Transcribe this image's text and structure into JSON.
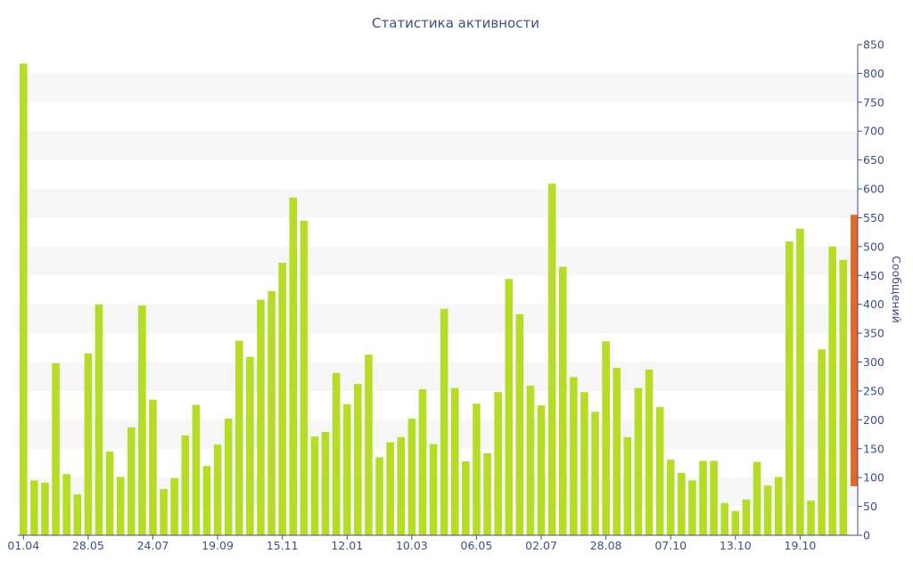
{
  "chart_data": {
    "type": "bar",
    "title": "Статистика активности",
    "ylabel": "Сообщений",
    "xlabel": "",
    "ylim": [
      0,
      850
    ],
    "y_ticks": [
      0,
      50,
      100,
      150,
      200,
      250,
      300,
      350,
      400,
      450,
      500,
      550,
      600,
      650,
      700,
      750,
      800,
      850
    ],
    "y_axis_side": "right",
    "grid": "alternating horizontal bands",
    "x_tick_labels": [
      {
        "index": 0,
        "label": "01.04"
      },
      {
        "index": 6,
        "label": "28.05"
      },
      {
        "index": 12,
        "label": "24.07"
      },
      {
        "index": 18,
        "label": "19.09"
      },
      {
        "index": 24,
        "label": "15.11"
      },
      {
        "index": 30,
        "label": "12.01"
      },
      {
        "index": 36,
        "label": "10.03"
      },
      {
        "index": 42,
        "label": "06.05"
      },
      {
        "index": 48,
        "label": "02.07"
      },
      {
        "index": 54,
        "label": "28.08"
      },
      {
        "index": 60,
        "label": "07.10"
      },
      {
        "index": 66,
        "label": "13.10"
      },
      {
        "index": 72,
        "label": "19.10"
      }
    ],
    "values": [
      817,
      95,
      91,
      298,
      106,
      71,
      315,
      400,
      145,
      101,
      187,
      398,
      235,
      80,
      99,
      173,
      226,
      120,
      157,
      202,
      337,
      309,
      408,
      423,
      472,
      585,
      545,
      171,
      179,
      281,
      227,
      262,
      313,
      135,
      161,
      170,
      202,
      253,
      158,
      392,
      255,
      128,
      228,
      142,
      248,
      444,
      383,
      259,
      225,
      609,
      465,
      274,
      248,
      214,
      336,
      290,
      170,
      255,
      287,
      222,
      131,
      108,
      95,
      129,
      129,
      56,
      42,
      62,
      127,
      86,
      101,
      509,
      531,
      60,
      322,
      500,
      477
    ],
    "highlight": {
      "from": 85,
      "to": 555,
      "color": "#e06a2c"
    },
    "colors": {
      "bar": "#b5dd26",
      "highlight": "#e06a2c",
      "band": "#f6f6f6",
      "axis": "#3e4f86",
      "text": "#3e4f86"
    }
  }
}
